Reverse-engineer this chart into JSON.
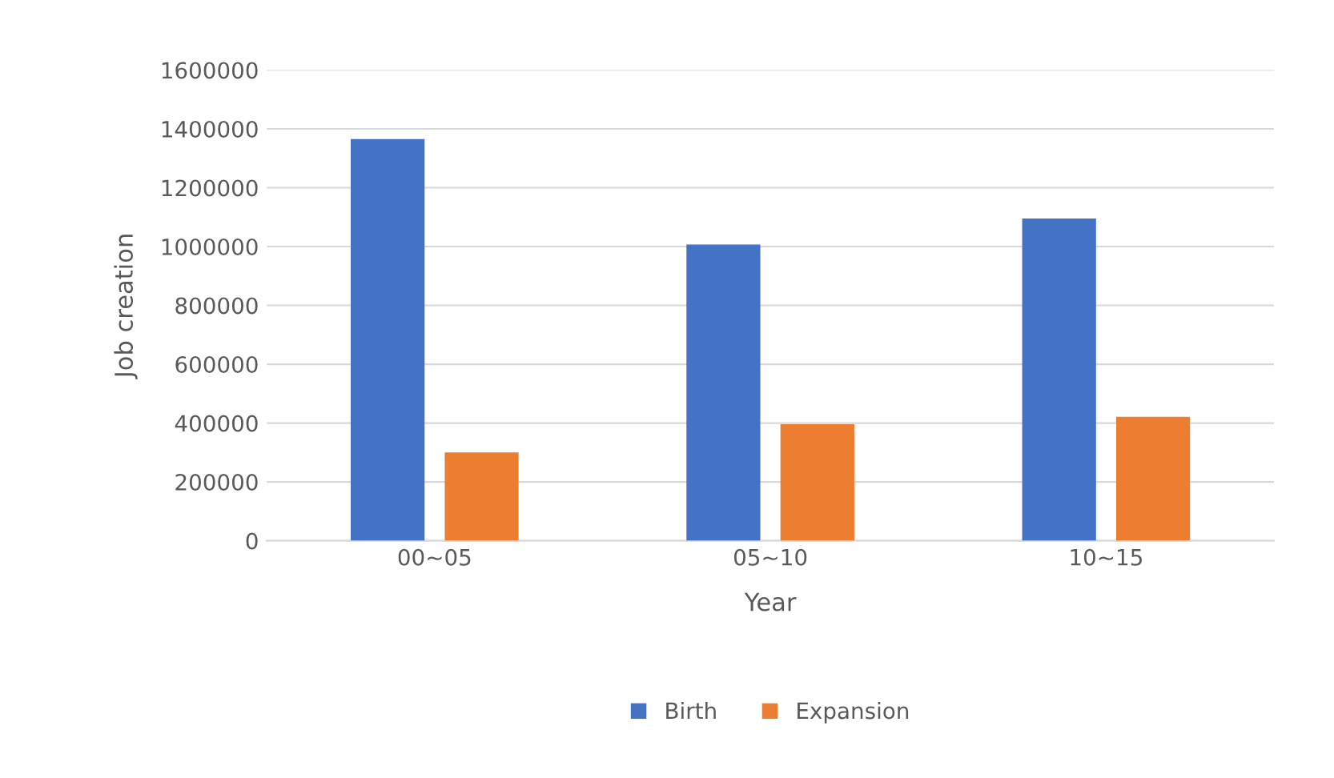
{
  "chart_data": {
    "type": "bar",
    "xlabel": "Year",
    "ylabel": "Job creation",
    "categories": [
      "00~05",
      "05~10",
      "10~15"
    ],
    "series": [
      {
        "name": "Birth",
        "color": "#4472c4",
        "values": [
          1365000,
          1007000,
          1095000
        ]
      },
      {
        "name": "Expansion",
        "color": "#ed7d31",
        "values": [
          300000,
          396000,
          421000
        ]
      }
    ],
    "ylim": [
      0,
      1600000
    ],
    "yticks": [
      0,
      200000,
      400000,
      600000,
      800000,
      1000000,
      1200000,
      1400000,
      1600000
    ],
    "grid": "y",
    "legend": "bottom"
  }
}
